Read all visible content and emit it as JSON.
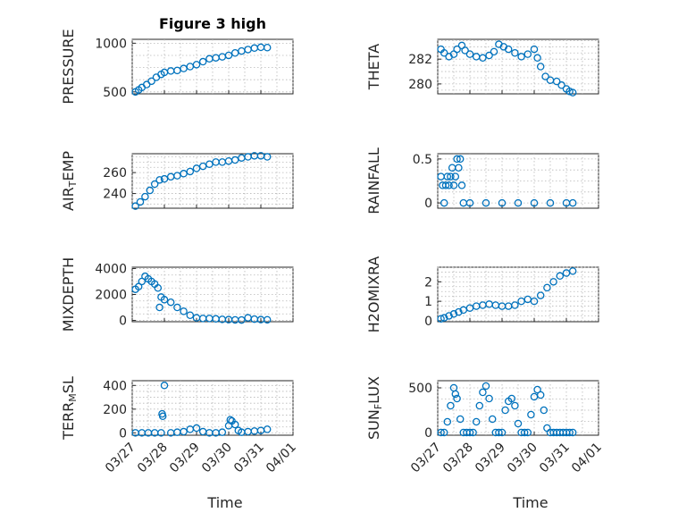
{
  "chart_data": [
    {
      "type": "scatter",
      "title": "Figure 3 high",
      "ylabel": "PRESSURE",
      "ylim": [
        480,
        1040
      ],
      "yticks": [
        500,
        1000
      ],
      "xlim": [
        0,
        5
      ],
      "xticklabels": [],
      "color": "#0072BD",
      "grid": true,
      "x": [
        0.1,
        0.2,
        0.3,
        0.45,
        0.6,
        0.75,
        0.9,
        1.0,
        1.2,
        1.4,
        1.6,
        1.8,
        2.0,
        2.2,
        2.4,
        2.6,
        2.8,
        3.0,
        3.2,
        3.4,
        3.6,
        3.8,
        4.0,
        4.2
      ],
      "y": [
        500,
        520,
        545,
        575,
        610,
        650,
        680,
        700,
        715,
        720,
        740,
        760,
        780,
        810,
        840,
        850,
        860,
        875,
        900,
        920,
        935,
        950,
        958,
        955
      ]
    },
    {
      "type": "scatter",
      "ylabel": "THETA",
      "ylim": [
        279.2,
        283.6
      ],
      "yticks": [
        280,
        282
      ],
      "xlim": [
        0,
        5
      ],
      "xticklabels": [],
      "color": "#0072BD",
      "grid": true,
      "x": [
        0.1,
        0.2,
        0.35,
        0.5,
        0.6,
        0.75,
        0.85,
        1.0,
        1.2,
        1.4,
        1.6,
        1.75,
        1.9,
        2.05,
        2.2,
        2.4,
        2.6,
        2.8,
        3.0,
        3.1,
        3.2,
        3.35,
        3.5,
        3.7,
        3.85,
        4.0,
        4.1,
        4.2
      ],
      "y": [
        282.8,
        282.5,
        282.2,
        282.4,
        282.8,
        283.1,
        282.7,
        282.4,
        282.2,
        282.1,
        282.3,
        282.6,
        283.2,
        283.0,
        282.8,
        282.5,
        282.2,
        282.4,
        282.8,
        282.1,
        281.4,
        280.6,
        280.3,
        280.2,
        279.9,
        279.6,
        279.4,
        279.3
      ]
    },
    {
      "type": "scatter",
      "ylabel": "AIR_TEMP",
      "ylim": [
        226,
        278
      ],
      "yticks": [
        240,
        260
      ],
      "xlim": [
        0,
        5
      ],
      "xticklabels": [],
      "color": "#0072BD",
      "grid": true,
      "x": [
        0.1,
        0.25,
        0.4,
        0.55,
        0.7,
        0.85,
        1.0,
        1.2,
        1.4,
        1.6,
        1.8,
        2.0,
        2.2,
        2.4,
        2.6,
        2.8,
        3.0,
        3.2,
        3.4,
        3.6,
        3.8,
        4.0,
        4.2
      ],
      "y": [
        228,
        232,
        237,
        243,
        249,
        253,
        254,
        256,
        257,
        259,
        261,
        264,
        266,
        268,
        270,
        270,
        271,
        272,
        274,
        275,
        276,
        276,
        275
      ]
    },
    {
      "type": "scatter",
      "ylabel": "RAINFALL",
      "ylim": [
        -0.06,
        0.56
      ],
      "yticks": [
        0,
        0.5
      ],
      "xlim": [
        0,
        5
      ],
      "xticklabels": [],
      "color": "#0072BD",
      "grid": true,
      "x": [
        0.1,
        0.15,
        0.2,
        0.25,
        0.3,
        0.35,
        0.4,
        0.45,
        0.5,
        0.55,
        0.6,
        0.65,
        0.7,
        0.75,
        0.8,
        1.0,
        1.5,
        2.0,
        2.5,
        3.0,
        3.5,
        4.0,
        4.2
      ],
      "y": [
        0.3,
        0.2,
        0.0,
        0.2,
        0.3,
        0.2,
        0.3,
        0.4,
        0.2,
        0.3,
        0.5,
        0.4,
        0.5,
        0.2,
        0.0,
        0.0,
        0.0,
        0.0,
        0.0,
        0.0,
        0.0,
        0.0,
        0.0
      ]
    },
    {
      "type": "scatter",
      "ylabel": "MIXDEPTH",
      "ylim": [
        -100,
        4100
      ],
      "yticks": [
        0,
        2000,
        4000
      ],
      "xlim": [
        0,
        5
      ],
      "xticklabels": [],
      "color": "#0072BD",
      "grid": true,
      "x": [
        0.1,
        0.2,
        0.3,
        0.4,
        0.5,
        0.6,
        0.7,
        0.8,
        0.85,
        0.9,
        1.0,
        1.2,
        1.4,
        1.6,
        1.8,
        2.0,
        2.2,
        2.4,
        2.6,
        2.8,
        3.0,
        3.2,
        3.4,
        3.6,
        3.8,
        4.0,
        4.2
      ],
      "y": [
        2400,
        2600,
        3000,
        3400,
        3200,
        3000,
        2800,
        2500,
        1000,
        1800,
        1600,
        1400,
        1000,
        700,
        400,
        200,
        150,
        150,
        120,
        80,
        60,
        40,
        30,
        200,
        100,
        60,
        50
      ]
    },
    {
      "type": "scatter",
      "ylabel": "H2OMIXRA",
      "ylim": [
        -0.05,
        2.75
      ],
      "yticks": [
        0,
        1,
        2
      ],
      "xlim": [
        0,
        5
      ],
      "xticklabels": [],
      "color": "#0072BD",
      "grid": true,
      "x": [
        0.1,
        0.2,
        0.35,
        0.5,
        0.65,
        0.8,
        1.0,
        1.2,
        1.4,
        1.6,
        1.8,
        2.0,
        2.2,
        2.4,
        2.6,
        2.8,
        3.0,
        3.2,
        3.4,
        3.6,
        3.8,
        4.0,
        4.2
      ],
      "y": [
        0.1,
        0.15,
        0.25,
        0.35,
        0.45,
        0.55,
        0.65,
        0.75,
        0.8,
        0.85,
        0.8,
        0.75,
        0.75,
        0.8,
        1.0,
        1.1,
        1.0,
        1.3,
        1.7,
        2.0,
        2.3,
        2.45,
        2.55
      ]
    },
    {
      "type": "scatter",
      "ylabel": "TERR_MSL",
      "ylim": [
        -20,
        440
      ],
      "yticks": [
        0,
        200,
        400
      ],
      "xlim": [
        0,
        5
      ],
      "xticklabels": [
        "03/27",
        "03/28",
        "03/29",
        "03/30",
        "03/31",
        "04/01"
      ],
      "xlabel": "Time",
      "color": "#0072BD",
      "grid": true,
      "x": [
        0.1,
        0.3,
        0.5,
        0.7,
        0.9,
        0.93,
        0.95,
        1.0,
        1.2,
        1.4,
        1.6,
        1.8,
        2.0,
        2.2,
        2.4,
        2.6,
        2.8,
        3.0,
        3.05,
        3.1,
        3.2,
        3.3,
        3.4,
        3.6,
        3.8,
        4.0,
        4.2
      ],
      "y": [
        0,
        0,
        0,
        0,
        0,
        160,
        140,
        400,
        0,
        5,
        10,
        30,
        40,
        10,
        0,
        0,
        5,
        60,
        110,
        100,
        70,
        20,
        5,
        10,
        15,
        20,
        30
      ]
    },
    {
      "type": "scatter",
      "ylabel": "SUN_FLUX",
      "ylim": [
        -30,
        580
      ],
      "yticks": [
        0,
        500
      ],
      "xlim": [
        0,
        5
      ],
      "xticklabels": [
        "03/27",
        "03/28",
        "03/29",
        "03/30",
        "03/31",
        "04/01"
      ],
      "xlabel": "Time",
      "color": "#0072BD",
      "grid": true,
      "x": [
        0.1,
        0.2,
        0.3,
        0.4,
        0.5,
        0.55,
        0.6,
        0.7,
        0.8,
        0.9,
        1.0,
        1.1,
        1.2,
        1.3,
        1.4,
        1.5,
        1.6,
        1.7,
        1.8,
        1.9,
        2.0,
        2.1,
        2.2,
        2.3,
        2.4,
        2.5,
        2.6,
        2.7,
        2.8,
        2.9,
        3.0,
        3.1,
        3.2,
        3.3,
        3.4,
        3.5,
        3.6,
        3.7,
        3.8,
        3.9,
        4.0,
        4.1,
        4.2
      ],
      "y": [
        0,
        0,
        120,
        300,
        500,
        430,
        380,
        150,
        0,
        0,
        0,
        0,
        120,
        300,
        450,
        520,
        380,
        150,
        0,
        0,
        0,
        250,
        350,
        380,
        300,
        100,
        0,
        0,
        0,
        200,
        400,
        480,
        420,
        250,
        50,
        0,
        0,
        0,
        0,
        0,
        0,
        0,
        0
      ]
    }
  ]
}
